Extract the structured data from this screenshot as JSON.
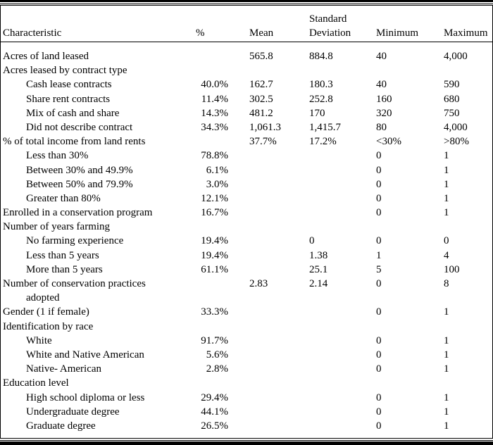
{
  "colors": {
    "background": "#ffffff",
    "text": "#000000",
    "rules": "#000000"
  },
  "header": {
    "characteristic": "Characteristic",
    "pct": "%",
    "mean": "Mean",
    "sd_line1": "Standard",
    "sd_line2": "Deviation",
    "min": "Minimum",
    "max": "Maximum"
  },
  "rows": [
    {
      "label": "Acres of land leased",
      "indent": 0,
      "pct": "",
      "mean": "565.8",
      "sd": "884.8",
      "min": "40",
      "max": "4,000"
    },
    {
      "label": "Acres leased by contract type",
      "indent": 0,
      "pct": "",
      "mean": "",
      "sd": "",
      "min": "",
      "max": ""
    },
    {
      "label": "Cash lease contracts",
      "indent": 1,
      "pct": "40.0%",
      "mean": "162.7",
      "sd": "180.3",
      "min": "40",
      "max": "590"
    },
    {
      "label": "Share rent contracts",
      "indent": 1,
      "pct": "11.4%",
      "mean": "302.5",
      "sd": "252.8",
      "min": "160",
      "max": "680"
    },
    {
      "label": "Mix of cash and share",
      "indent": 1,
      "pct": "14.3%",
      "mean": "481.2",
      "sd": "170",
      "min": "320",
      "max": "750"
    },
    {
      "label": "Did not describe contract",
      "indent": 1,
      "pct": "34.3%",
      "mean": "1,061.3",
      "sd": "1,415.7",
      "min": "80",
      "max": "4,000"
    },
    {
      "label": "% of total income from land rents",
      "indent": 0,
      "pct": "",
      "mean": "37.7%",
      "sd": "17.2%",
      "min": "<30%",
      "max": ">80%"
    },
    {
      "label": "Less than 30%",
      "indent": 1,
      "pct": "78.8%",
      "mean": "",
      "sd": "",
      "min": "0",
      "max": "1"
    },
    {
      "label": "Between 30% and 49.9%",
      "indent": 1,
      "pct": "6.1%",
      "mean": "",
      "sd": "",
      "min": "0",
      "max": "1"
    },
    {
      "label": "Between 50% and 79.9%",
      "indent": 1,
      "pct": "3.0%",
      "mean": "",
      "sd": "",
      "min": "0",
      "max": "1"
    },
    {
      "label": "Greater than 80%",
      "indent": 1,
      "pct": "12.1%",
      "mean": "",
      "sd": "",
      "min": "0",
      "max": "1"
    },
    {
      "label": "Enrolled in a conservation program",
      "indent": 0,
      "pct": "16.7%",
      "mean": "",
      "sd": "",
      "min": "0",
      "max": "1"
    },
    {
      "label": "Number of years farming",
      "indent": 0,
      "pct": "",
      "mean": "",
      "sd": "",
      "min": "",
      "max": ""
    },
    {
      "label": "No farming experience",
      "indent": 1,
      "pct": "19.4%",
      "mean": "",
      "sd": "0",
      "min": "0",
      "max": "0"
    },
    {
      "label": "Less than 5 years",
      "indent": 1,
      "pct": "19.4%",
      "mean": "",
      "sd": "1.38",
      "min": "1",
      "max": "4"
    },
    {
      "label": "More than 5 years",
      "indent": 1,
      "pct": "61.1%",
      "mean": "",
      "sd": "25.1",
      "min": "5",
      "max": "100"
    },
    {
      "label": "Number of conservation practices",
      "indent": 0,
      "pct": "",
      "mean": "2.83",
      "sd": "2.14",
      "min": "0",
      "max": "8"
    },
    {
      "label": "adopted",
      "indent": 1,
      "pct": "",
      "mean": "",
      "sd": "",
      "min": "",
      "max": "",
      "continuation": true
    },
    {
      "label": "Gender (1 if female)",
      "indent": 0,
      "pct": "33.3%",
      "mean": "",
      "sd": "",
      "min": "0",
      "max": "1"
    },
    {
      "label": "Identification by race",
      "indent": 0,
      "pct": "",
      "mean": "",
      "sd": "",
      "min": "",
      "max": ""
    },
    {
      "label": "White",
      "indent": 1,
      "pct": "91.7%",
      "mean": "",
      "sd": "",
      "min": "0",
      "max": "1"
    },
    {
      "label": "White and Native American",
      "indent": 1,
      "pct": "5.6%",
      "mean": "",
      "sd": "",
      "min": "0",
      "max": "1"
    },
    {
      "label": "Native- American",
      "indent": 1,
      "pct": "2.8%",
      "mean": "",
      "sd": "",
      "min": "0",
      "max": "1"
    },
    {
      "label": "Education level",
      "indent": 0,
      "pct": "",
      "mean": "",
      "sd": "",
      "min": "",
      "max": ""
    },
    {
      "label": "High school diploma or less",
      "indent": 1,
      "pct": "29.4%",
      "mean": "",
      "sd": "",
      "min": "0",
      "max": "1"
    },
    {
      "label": "Undergraduate degree",
      "indent": 1,
      "pct": "44.1%",
      "mean": "",
      "sd": "",
      "min": "0",
      "max": "1"
    },
    {
      "label": "Graduate degree",
      "indent": 1,
      "pct": "26.5%",
      "mean": "",
      "sd": "",
      "min": "0",
      "max": "1"
    }
  ]
}
